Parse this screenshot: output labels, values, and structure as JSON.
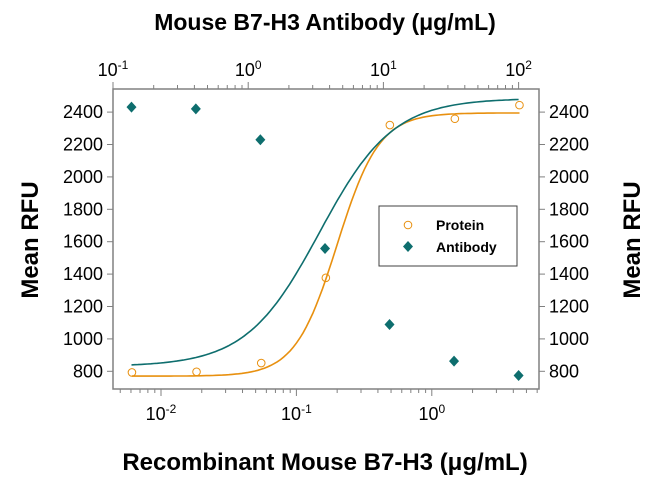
{
  "chart_data": {
    "type": "scatter",
    "title": "Mouse B7-H3 Antibody (μg/mL)",
    "xlabel": "Recombinant Mouse B7-H3 (μg/mL)",
    "x2label": "Mouse B7-H3 Antibody (μg/mL)",
    "ylabel": "Mean RFU",
    "y2label": "Mean RFU",
    "xscale": "log",
    "xlim": [
      0.0044,
      6.3
    ],
    "x2lim": [
      0.1,
      100
    ],
    "ylim": [
      670,
      2530
    ],
    "yticks": [
      "800",
      "1000",
      "1200",
      "1400",
      "1600",
      "1800",
      "2000",
      "2200",
      "2400"
    ],
    "xticks": [
      {
        "base": "10",
        "exp": "-2",
        "value": 0.01
      },
      {
        "base": "10",
        "exp": "-1",
        "value": 0.1
      },
      {
        "base": "10",
        "exp": "0",
        "value": 1
      }
    ],
    "x2ticks": [
      {
        "base": "10",
        "exp": "-1",
        "value": 0.1
      },
      {
        "base": "10",
        "exp": "0",
        "value": 1
      },
      {
        "base": "10",
        "exp": "1",
        "value": 10
      },
      {
        "base": "10",
        "exp": "2",
        "value": 100
      }
    ],
    "grid": false,
    "legend_position": "center-right",
    "series": [
      {
        "name": "Protein",
        "axis": "bottom",
        "marker": "open-circle",
        "color": "#E8900F",
        "x": [
          0.0061,
          0.0183,
          0.055,
          0.165,
          0.49,
          1.48,
          4.44
        ],
        "y": [
          793,
          797,
          851,
          1377,
          2320,
          2359,
          2443
        ],
        "fit": {
          "bottom": 770,
          "top": 2395,
          "ec50": 0.2,
          "hill": 2.8
        }
      },
      {
        "name": "Antibody",
        "axis": "top",
        "marker": "filled-diamond",
        "color": "#0E6E6E",
        "x": [
          0.137,
          0.41,
          1.23,
          3.7,
          11.1,
          33.3,
          100
        ],
        "y": [
          2431,
          2420,
          2229,
          1558,
          1089,
          863,
          774
        ],
        "fit": {
          "bottom": 830,
          "top": 2485,
          "ec50": 3.37,
          "hill": 1.6
        }
      }
    ]
  }
}
